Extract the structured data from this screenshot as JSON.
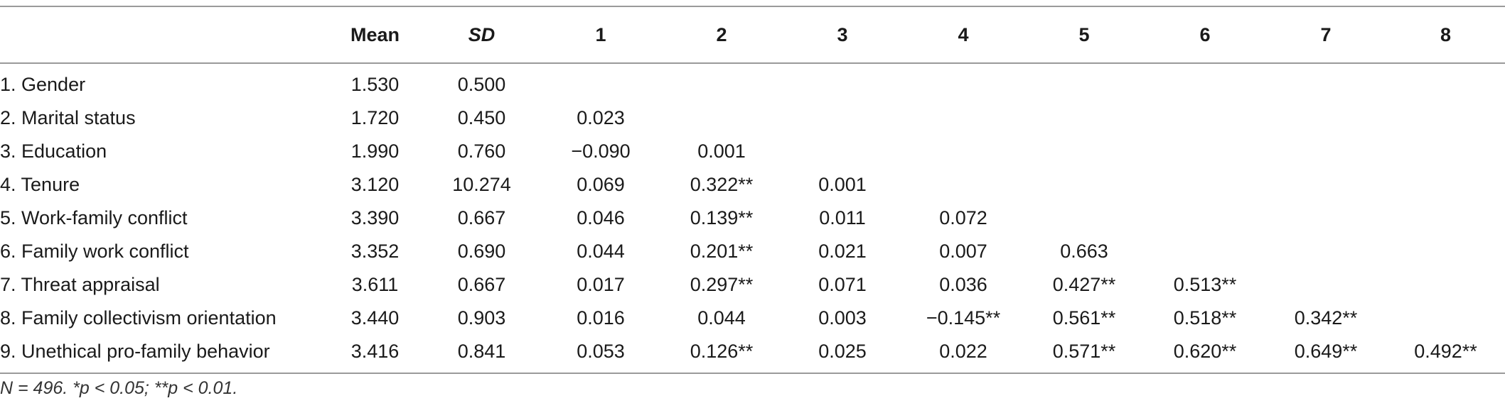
{
  "table": {
    "headers": [
      "",
      "Mean",
      "SD",
      "1",
      "2",
      "3",
      "4",
      "5",
      "6",
      "7",
      "8"
    ],
    "rows": [
      {
        "label": "1. Gender",
        "mean": "1.530",
        "sd": "0.500",
        "corr": [
          "",
          "",
          "",
          "",
          "",
          "",
          "",
          ""
        ]
      },
      {
        "label": "2. Marital status",
        "mean": "1.720",
        "sd": "0.450",
        "corr": [
          "0.023",
          "",
          "",
          "",
          "",
          "",
          "",
          ""
        ]
      },
      {
        "label": "3. Education",
        "mean": "1.990",
        "sd": "0.760",
        "corr": [
          "−0.090",
          "0.001",
          "",
          "",
          "",
          "",
          "",
          ""
        ]
      },
      {
        "label": "4. Tenure",
        "mean": "3.120",
        "sd": "10.274",
        "corr": [
          "0.069",
          "0.322**",
          "0.001",
          "",
          "",
          "",
          "",
          ""
        ]
      },
      {
        "label": "5. Work-family conflict",
        "mean": "3.390",
        "sd": "0.667",
        "corr": [
          "0.046",
          "0.139**",
          "0.011",
          "0.072",
          "",
          "",
          "",
          ""
        ]
      },
      {
        "label": "6. Family work conflict",
        "mean": "3.352",
        "sd": "0.690",
        "corr": [
          "0.044",
          "0.201**",
          "0.021",
          "0.007",
          "0.663",
          "",
          "",
          ""
        ]
      },
      {
        "label": "7. Threat appraisal",
        "mean": "3.611",
        "sd": "0.667",
        "corr": [
          "0.017",
          "0.297**",
          "0.071",
          "0.036",
          "0.427**",
          "0.513**",
          "",
          ""
        ]
      },
      {
        "label": "8. Family collectivism orientation",
        "mean": "3.440",
        "sd": "0.903",
        "corr": [
          "0.016",
          "0.044",
          "0.003",
          "−0.145**",
          "0.561**",
          "0.518**",
          "0.342**",
          ""
        ]
      },
      {
        "label": "9. Unethical pro-family behavior",
        "mean": "3.416",
        "sd": "0.841",
        "corr": [
          "0.053",
          "0.126**",
          "0.025",
          "0.022",
          "0.571**",
          "0.620**",
          "0.649**",
          "0.492**"
        ]
      }
    ]
  },
  "note": "N = 496. *p < 0.05; **p < 0.01."
}
